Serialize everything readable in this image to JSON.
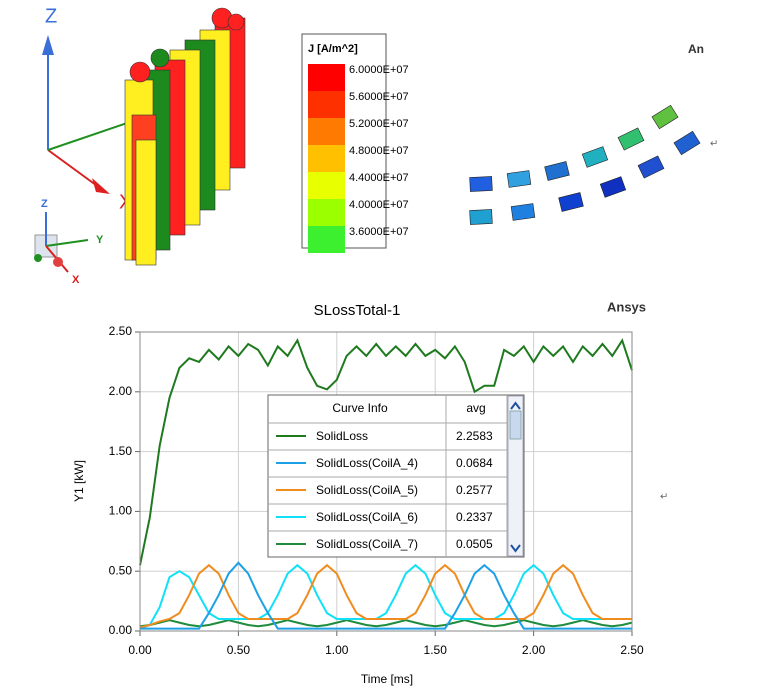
{
  "field_view": {
    "triad_labels": [
      "Z",
      "X"
    ],
    "mini_triad_labels": [
      "Z",
      "Y",
      "X"
    ],
    "colorbar": {
      "title": "J [A/m^2]",
      "levels": [
        {
          "label": "6.0000E+07",
          "color": "#ff0000"
        },
        {
          "label": "5.6000E+07",
          "color": "#ff3000"
        },
        {
          "label": "5.2000E+07",
          "color": "#ff7a00"
        },
        {
          "label": "4.8000E+07",
          "color": "#ffc000"
        },
        {
          "label": "4.4000E+07",
          "color": "#e8ff00"
        },
        {
          "label": "4.0000E+07",
          "color": "#9cff00"
        },
        {
          "label": "3.6000E+07",
          "color": "#3cf030"
        }
      ]
    },
    "brand": "An",
    "paragraph_marks": [
      "↵",
      "↵"
    ]
  },
  "chart_data": {
    "type": "line",
    "title": "SLossTotal-1",
    "brand": "Ansys",
    "x_label": "Time [ms]",
    "y_label": "Y1 [kW]",
    "legend_header": [
      "Curve Info",
      "avg"
    ],
    "x": [
      0,
      0.05,
      0.1,
      0.15,
      0.2,
      0.25,
      0.3,
      0.35,
      0.4,
      0.45,
      0.5,
      0.55,
      0.6,
      0.65,
      0.7,
      0.75,
      0.8,
      0.85,
      0.9,
      0.95,
      1.0,
      1.05,
      1.1,
      1.15,
      1.2,
      1.25,
      1.3,
      1.35,
      1.4,
      1.45,
      1.5,
      1.55,
      1.6,
      1.65,
      1.7,
      1.75,
      1.8,
      1.85,
      1.9,
      1.95,
      2.0,
      2.05,
      2.1,
      2.15,
      2.2,
      2.25,
      2.3,
      2.35,
      2.4,
      2.45,
      2.5
    ],
    "series": [
      {
        "name": "SolidLoss",
        "avg": "2.2583",
        "color": "#1f7a1f",
        "values": [
          0.55,
          0.95,
          1.55,
          1.95,
          2.2,
          2.28,
          2.25,
          2.35,
          2.27,
          2.38,
          2.3,
          2.4,
          2.35,
          2.22,
          2.38,
          2.3,
          2.43,
          2.2,
          2.05,
          2.02,
          2.1,
          2.3,
          2.38,
          2.3,
          2.4,
          2.3,
          2.38,
          2.3,
          2.4,
          2.3,
          2.35,
          2.28,
          2.38,
          2.25,
          2.0,
          2.05,
          2.05,
          2.35,
          2.3,
          2.38,
          2.25,
          2.38,
          2.3,
          2.38,
          2.25,
          2.38,
          2.3,
          2.4,
          2.3,
          2.43,
          2.18
        ]
      },
      {
        "name": "SolidLoss(CoilA_4)",
        "avg": "0.0684",
        "color": "#1ea0e6",
        "values": [
          0.02,
          0.02,
          0.02,
          0.02,
          0.02,
          0.02,
          0.02,
          0.15,
          0.3,
          0.48,
          0.57,
          0.48,
          0.3,
          0.15,
          0.02,
          0.02,
          0.02,
          0.02,
          0.02,
          0.02,
          0.02,
          0.02,
          0.02,
          0.02,
          0.02,
          0.02,
          0.02,
          0.02,
          0.02,
          0.02,
          0.02,
          0.02,
          0.15,
          0.3,
          0.48,
          0.55,
          0.48,
          0.3,
          0.15,
          0.02,
          0.02,
          0.02,
          0.02,
          0.02,
          0.02,
          0.02,
          0.02,
          0.02,
          0.02,
          0.02,
          0.02
        ]
      },
      {
        "name": "SolidLoss(CoilA_5)",
        "avg": "0.2577",
        "color": "#f08c1e",
        "values": [
          0.03,
          0.05,
          0.08,
          0.1,
          0.15,
          0.3,
          0.48,
          0.55,
          0.48,
          0.3,
          0.15,
          0.1,
          0.1,
          0.1,
          0.1,
          0.1,
          0.15,
          0.3,
          0.48,
          0.55,
          0.48,
          0.3,
          0.15,
          0.1,
          0.1,
          0.1,
          0.1,
          0.1,
          0.15,
          0.3,
          0.48,
          0.55,
          0.48,
          0.3,
          0.15,
          0.1,
          0.1,
          0.1,
          0.1,
          0.1,
          0.15,
          0.3,
          0.48,
          0.55,
          0.48,
          0.3,
          0.15,
          0.1,
          0.1,
          0.1,
          0.1
        ]
      },
      {
        "name": "SolidLoss(CoilA_6)",
        "avg": "0.2337",
        "color": "#10e0f8",
        "values": [
          0.02,
          0.05,
          0.2,
          0.45,
          0.5,
          0.45,
          0.3,
          0.15,
          0.1,
          0.1,
          0.1,
          0.1,
          0.1,
          0.15,
          0.3,
          0.48,
          0.55,
          0.48,
          0.3,
          0.15,
          0.1,
          0.1,
          0.1,
          0.1,
          0.1,
          0.15,
          0.3,
          0.48,
          0.55,
          0.48,
          0.3,
          0.15,
          0.1,
          0.1,
          0.1,
          0.1,
          0.1,
          0.15,
          0.3,
          0.48,
          0.55,
          0.48,
          0.3,
          0.15,
          0.1,
          0.1,
          0.1,
          0.1,
          0.1,
          0.1,
          0.1
        ]
      },
      {
        "name": "SolidLoss(CoilA_7)",
        "avg": "0.0505",
        "color": "#1e8c3c",
        "values": [
          0.04,
          0.05,
          0.07,
          0.09,
          0.07,
          0.05,
          0.04,
          0.05,
          0.07,
          0.09,
          0.07,
          0.05,
          0.04,
          0.05,
          0.07,
          0.09,
          0.07,
          0.05,
          0.04,
          0.05,
          0.07,
          0.09,
          0.07,
          0.05,
          0.04,
          0.05,
          0.07,
          0.09,
          0.07,
          0.05,
          0.04,
          0.05,
          0.07,
          0.09,
          0.07,
          0.05,
          0.04,
          0.05,
          0.07,
          0.09,
          0.07,
          0.05,
          0.04,
          0.05,
          0.07,
          0.09,
          0.07,
          0.05,
          0.04,
          0.05,
          0.07
        ]
      }
    ],
    "xlim": [
      0,
      2.5
    ],
    "ylim": [
      0,
      2.5
    ],
    "xticks": [
      {
        "value": 0,
        "label": "0.00"
      },
      {
        "value": 0.5,
        "label": "0.50"
      },
      {
        "value": 1,
        "label": "1.00"
      },
      {
        "value": 1.5,
        "label": "1.50"
      },
      {
        "value": 2,
        "label": "2.00"
      },
      {
        "value": 2.5,
        "label": "2.50"
      }
    ],
    "yticks": [
      {
        "value": 0,
        "label": "0.00"
      },
      {
        "value": 0.5,
        "label": "0.50"
      },
      {
        "value": 1,
        "label": "1.00"
      },
      {
        "value": 1.5,
        "label": "1.50"
      },
      {
        "value": 2,
        "label": "2.00"
      },
      {
        "value": 2.5,
        "label": "2.50"
      }
    ],
    "grid": true
  }
}
